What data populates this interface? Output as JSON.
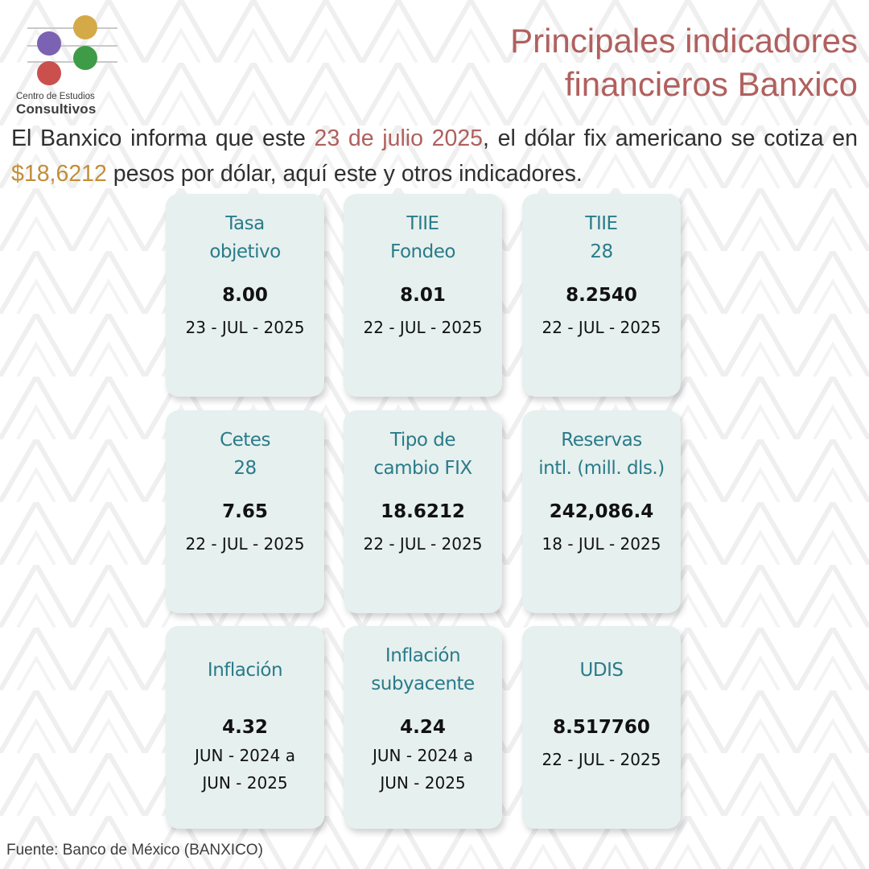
{
  "logo": {
    "line1": "Centro de Estudios",
    "line2": "Consultivos",
    "colors": {
      "purple": "#7b62b3",
      "yellow": "#d4a948",
      "red": "#c9504d",
      "green": "#3e9b47"
    }
  },
  "title": {
    "line1": "Principales indicadores",
    "line2": "financieros Banxico",
    "color": "#b0605e"
  },
  "intro": {
    "before_date": "El Banxico informa que este ",
    "date": "23 de julio 2025",
    "middle": ", el dólar fix americano se cotiza en ",
    "price": "$18,6212",
    "after": " pesos por dólar, aquí este y otros indicadores.",
    "date_color": "#b0605e",
    "price_color": "#c18f38"
  },
  "cards": [
    {
      "title": "Tasa\nobjetivo",
      "value": "8.00",
      "date": "23 - JUL - 2025"
    },
    {
      "title": "TIIE\nFondeo",
      "value": "8.01",
      "date": "22 - JUL - 2025"
    },
    {
      "title": "TIIE\n28",
      "value": "8.2540",
      "date": "22 - JUL - 2025"
    },
    {
      "title": "Cetes\n28",
      "value": "7.65",
      "date": "22 - JUL - 2025"
    },
    {
      "title": "Tipo de\ncambio FIX",
      "value": "18.6212",
      "date": "22 - JUL - 2025"
    },
    {
      "title": "Reservas\nintl. (mill. dls.)",
      "value": "242,086.4",
      "date": "18 - JUL - 2025"
    },
    {
      "title": "Inflación",
      "value": "4.32",
      "date": "JUN - 2024 a\nJUN - 2025"
    },
    {
      "title": "Inflación\nsubyacente",
      "value": "4.24",
      "date": "JUN - 2024 a\nJUN - 2025"
    },
    {
      "title": "UDIS",
      "value": "8.517760",
      "date": "22 - JUL - 2025"
    }
  ],
  "source": "Fuente: Banco de México (BANXICO)"
}
